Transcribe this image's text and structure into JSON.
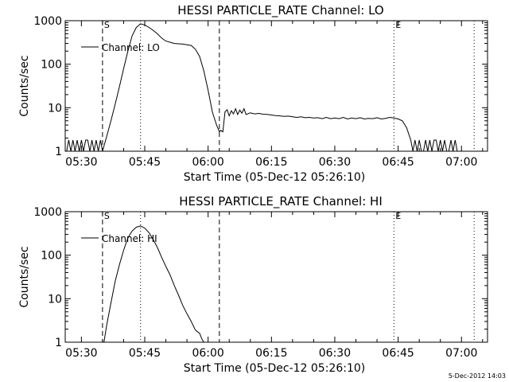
{
  "footer": {
    "date_stamp": "5-Dec-2012 14:03"
  },
  "chart_data": [
    {
      "type": "line",
      "title": "HESSI PARTICLE_RATE Channel: LO",
      "xlabel": "Start Time (05-Dec-12 05:26:10)",
      "ylabel": "Counts/sec",
      "y_scale": "log",
      "ylim": [
        1,
        1000
      ],
      "xlim": [
        "05:26:10",
        "07:06:10"
      ],
      "x_tick_labels": [
        "05:30",
        "05:45",
        "06:00",
        "06:15",
        "06:30",
        "06:45",
        "07:00"
      ],
      "y_tick_labels": [
        "1",
        "10",
        "100",
        "1000"
      ],
      "grid": false,
      "legend": {
        "position": "top-left",
        "entries": [
          "Channel: LO"
        ]
      },
      "markers": [
        {
          "label": "S",
          "time": "05:35:00",
          "style": "dashed"
        },
        {
          "label": "",
          "time": "05:44:00",
          "style": "dotted"
        },
        {
          "label": "",
          "time": "06:02:40",
          "style": "dashed"
        },
        {
          "label": "E",
          "time": "06:44:00",
          "style": "dotted"
        },
        {
          "label": "",
          "time": "07:03:00",
          "style": "dotted"
        }
      ],
      "series": [
        {
          "name": "Channel: LO",
          "x": [
            "05:26:30",
            "05:27:00",
            "05:27:30",
            "05:28:00",
            "05:28:30",
            "05:29:00",
            "05:29:30",
            "05:30:00",
            "05:30:30",
            "05:31:00",
            "05:31:30",
            "05:32:00",
            "05:32:30",
            "05:33:00",
            "05:33:30",
            "05:34:00",
            "05:34:30",
            "05:35:00",
            "05:35:30",
            "05:36:00",
            "05:37:00",
            "05:38:00",
            "05:39:00",
            "05:40:00",
            "05:41:00",
            "05:42:00",
            "05:43:00",
            "05:44:00",
            "05:45:00",
            "05:46:00",
            "05:47:00",
            "05:48:00",
            "05:49:00",
            "05:50:00",
            "05:52:00",
            "05:54:00",
            "05:56:00",
            "05:57:00",
            "05:58:00",
            "05:59:00",
            "06:00:00",
            "06:01:00",
            "06:02:00",
            "06:02:40",
            "06:03:00",
            "06:03:30",
            "06:04:00",
            "06:04:30",
            "06:05:00",
            "06:05:30",
            "06:06:00",
            "06:06:30",
            "06:07:00",
            "06:07:30",
            "06:08:00",
            "06:08:30",
            "06:09:00",
            "06:10:00",
            "06:11:00",
            "06:12:00",
            "06:13:00",
            "06:14:00",
            "06:15:00",
            "06:16:00",
            "06:17:00",
            "06:18:00",
            "06:19:00",
            "06:20:00",
            "06:21:00",
            "06:22:00",
            "06:23:00",
            "06:24:00",
            "06:25:00",
            "06:26:00",
            "06:27:00",
            "06:28:00",
            "06:29:00",
            "06:30:00",
            "06:31:00",
            "06:32:00",
            "06:33:00",
            "06:34:00",
            "06:35:00",
            "06:36:00",
            "06:37:00",
            "06:38:00",
            "06:39:00",
            "06:40:00",
            "06:41:00",
            "06:42:00",
            "06:43:00",
            "06:44:00",
            "06:45:00",
            "06:46:00",
            "06:47:00",
            "06:48:00",
            "06:48:30",
            "06:49:00",
            "06:49:30",
            "06:50:00",
            "06:50:30",
            "06:51:00",
            "06:51:30",
            "06:52:00",
            "06:52:30",
            "06:53:00",
            "06:53:30",
            "06:54:00",
            "06:54:30",
            "06:55:00",
            "06:55:30",
            "06:56:00",
            "06:56:30",
            "06:57:00",
            "06:57:30",
            "06:58:00",
            "06:58:30",
            "06:59:00"
          ],
          "values": [
            1,
            1.8,
            1,
            1.8,
            1,
            1.8,
            1,
            1.8,
            1,
            1.8,
            1.8,
            1,
            1.8,
            1,
            1.8,
            1,
            1.8,
            1,
            1.5,
            2.2,
            5,
            12,
            30,
            80,
            200,
            450,
            700,
            850,
            800,
            700,
            600,
            500,
            400,
            340,
            300,
            290,
            270,
            220,
            150,
            70,
            25,
            8,
            4,
            2.8,
            3,
            2.8,
            8,
            9,
            6.5,
            8.5,
            7.2,
            9.5,
            7,
            8.8,
            7.5,
            9.5,
            7,
            7.6,
            7.2,
            7.4,
            7.1,
            7,
            6.8,
            6.6,
            6.5,
            6.3,
            6.4,
            6.2,
            6,
            6.2,
            5.9,
            6,
            5.8,
            5.9,
            5.6,
            6,
            5.6,
            5.8,
            5.6,
            6,
            5.5,
            5.8,
            5.6,
            5.9,
            5.5,
            5.7,
            5.6,
            5.9,
            5.5,
            5.7,
            6,
            5.8,
            5.5,
            5,
            3.5,
            1.8,
            1,
            1.8,
            1,
            1.8,
            1,
            1,
            1.8,
            1,
            1.8,
            1,
            1.8,
            1.8,
            1,
            1.8,
            1,
            1.8,
            1,
            1,
            1.8,
            1,
            1.8,
            1
          ]
        }
      ]
    },
    {
      "type": "line",
      "title": "HESSI PARTICLE_RATE Channel: HI",
      "xlabel": "Start Time (05-Dec-12 05:26:10)",
      "ylabel": "Counts/sec",
      "y_scale": "log",
      "ylim": [
        1,
        1000
      ],
      "xlim": [
        "05:26:10",
        "07:06:10"
      ],
      "x_tick_labels": [
        "05:30",
        "05:45",
        "06:00",
        "06:15",
        "06:30",
        "06:45",
        "07:00"
      ],
      "y_tick_labels": [
        "1",
        "10",
        "100",
        "1000"
      ],
      "grid": false,
      "legend": {
        "position": "top-left",
        "entries": [
          "Channel: HI"
        ]
      },
      "markers": [
        {
          "label": "S",
          "time": "05:35:00",
          "style": "dashed"
        },
        {
          "label": "",
          "time": "05:44:00",
          "style": "dotted"
        },
        {
          "label": "",
          "time": "06:02:40",
          "style": "dashed"
        },
        {
          "label": "E",
          "time": "06:44:00",
          "style": "dotted"
        },
        {
          "label": "",
          "time": "07:03:00",
          "style": "dotted"
        }
      ],
      "series": [
        {
          "name": "Channel: HI",
          "x": [
            "05:35:20",
            "05:36:00",
            "05:37:00",
            "05:38:00",
            "05:39:00",
            "05:40:00",
            "05:41:00",
            "05:42:00",
            "05:43:00",
            "05:44:00",
            "05:45:00",
            "05:46:00",
            "05:47:00",
            "05:48:00",
            "05:49:00",
            "05:50:00",
            "05:51:00",
            "05:52:00",
            "05:53:00",
            "05:54:00",
            "05:55:00",
            "05:56:00",
            "05:57:00",
            "05:58:00",
            "05:58:30",
            "05:59:00"
          ],
          "values": [
            1,
            2.5,
            8,
            25,
            60,
            130,
            250,
            360,
            440,
            470,
            420,
            330,
            230,
            150,
            90,
            55,
            35,
            20,
            12,
            7,
            4.5,
            3,
            1.9,
            1.6,
            1.2,
            1
          ]
        }
      ]
    }
  ]
}
